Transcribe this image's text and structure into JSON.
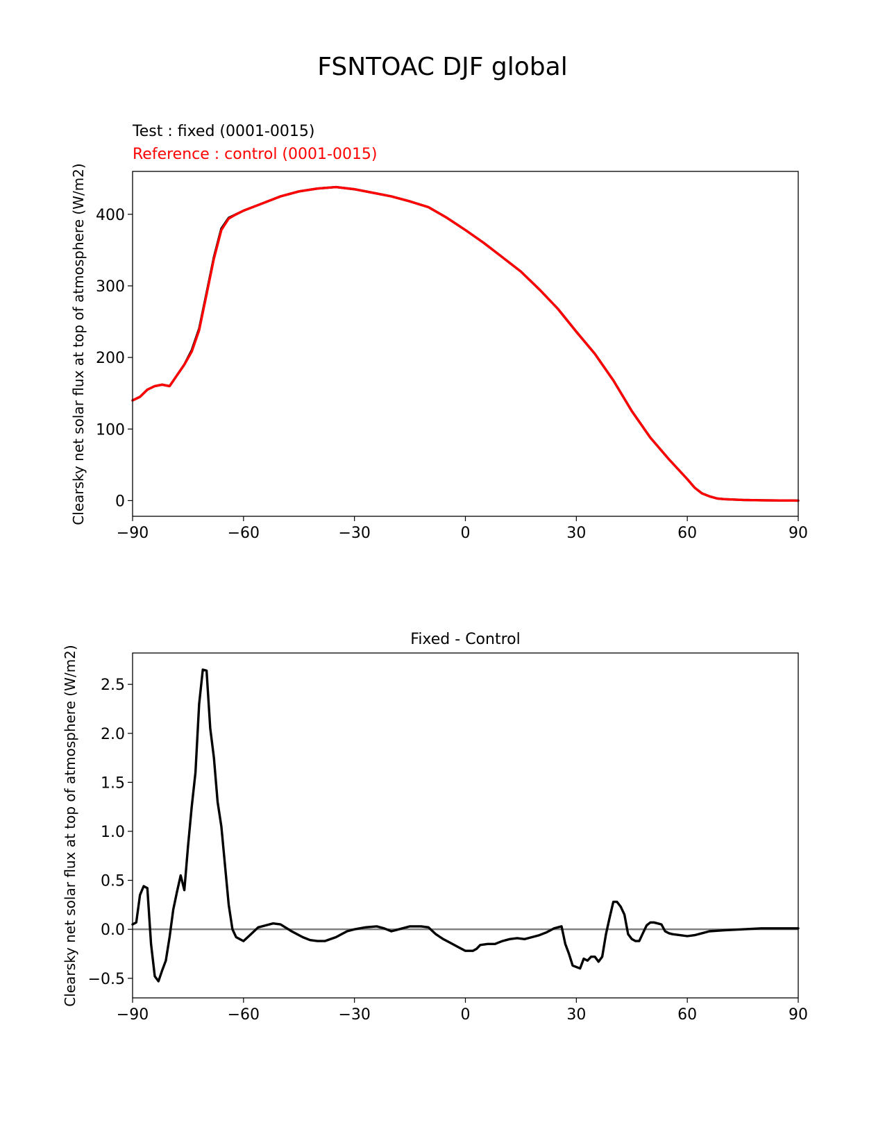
{
  "figure": {
    "suptitle": "FSNTOAC DJF global"
  },
  "chart_data": [
    {
      "type": "line",
      "title": "",
      "annotations": [
        {
          "text": "Test : fixed (0001-0015)",
          "color": "#000000"
        },
        {
          "text": "Reference : control (0001-0015)",
          "color": "#ff0000"
        }
      ],
      "xlabel": "",
      "ylabel": "Clearsky net solar flux at top of atmosphere (W/m2)",
      "xlim": [
        -90,
        90
      ],
      "ylim": [
        -21.9,
        459.9
      ],
      "xticks": [
        -90,
        -60,
        -30,
        0,
        30,
        60,
        90
      ],
      "xtick_labels": [
        "−90",
        "−60",
        "−30",
        "0",
        "30",
        "60",
        "90"
      ],
      "yticks": [
        0,
        100,
        200,
        300,
        400
      ],
      "ytick_labels": [
        "0",
        "100",
        "200",
        "300",
        "400"
      ],
      "grid": false,
      "series": [
        {
          "color": "#000000",
          "x": [
            -90,
            -88,
            -86,
            -84,
            -82,
            -80,
            -78,
            -76,
            -74,
            -72,
            -70,
            -68,
            -66,
            -64,
            -62,
            -60,
            -55,
            -50,
            -45,
            -40,
            -35,
            -30,
            -25,
            -20,
            -15,
            -10,
            -5,
            0,
            5,
            10,
            15,
            20,
            25,
            30,
            35,
            40,
            45,
            50,
            55,
            60,
            62,
            64,
            66,
            68,
            70,
            75,
            80,
            85,
            90
          ],
          "y": [
            140,
            145,
            155,
            160,
            162,
            160,
            175,
            190,
            210,
            240,
            290,
            340,
            380,
            395,
            400,
            405,
            415,
            425,
            432,
            436,
            438,
            435,
            430,
            425,
            418,
            410,
            395,
            378,
            360,
            340,
            320,
            295,
            268,
            236,
            205,
            168,
            125,
            88,
            58,
            30,
            18,
            10,
            6,
            3,
            2,
            1,
            0.5,
            0.2,
            0
          ]
        },
        {
          "color": "#ff0000",
          "x": [
            -90,
            -88,
            -86,
            -84,
            -82,
            -80,
            -78,
            -76,
            -74,
            -72,
            -70,
            -68,
            -66,
            -64,
            -62,
            -60,
            -55,
            -50,
            -45,
            -40,
            -35,
            -30,
            -25,
            -20,
            -15,
            -10,
            -5,
            0,
            5,
            10,
            15,
            20,
            25,
            30,
            35,
            40,
            45,
            50,
            55,
            60,
            62,
            64,
            66,
            68,
            70,
            75,
            80,
            85,
            90
          ],
          "y": [
            140,
            145,
            155,
            160,
            162,
            160,
            175,
            190,
            208,
            238,
            288,
            338,
            378,
            394,
            400,
            405,
            415,
            425,
            432,
            436,
            438,
            435,
            430,
            425,
            418,
            410,
            395,
            378,
            360,
            340,
            320,
            295,
            268,
            236,
            205,
            168,
            125,
            88,
            58,
            30,
            18,
            10,
            6,
            3,
            2,
            1,
            0.5,
            0.2,
            0
          ]
        }
      ]
    },
    {
      "type": "line",
      "title": "Fixed - Control",
      "xlabel": "",
      "ylabel": "Clearsky net solar flux at top of atmosphere (W/m2)",
      "xlim": [
        -90,
        90
      ],
      "ylim": [
        -0.7,
        2.82
      ],
      "xticks": [
        -90,
        -60,
        -30,
        0,
        30,
        60,
        90
      ],
      "xtick_labels": [
        "−90",
        "−60",
        "−30",
        "0",
        "30",
        "60",
        "90"
      ],
      "yticks": [
        -0.5,
        0.0,
        0.5,
        1.0,
        1.5,
        2.0,
        2.5
      ],
      "ytick_labels": [
        "−0.5",
        "0.0",
        "0.5",
        "1.0",
        "1.5",
        "2.0",
        "2.5"
      ],
      "grid": false,
      "reference_line": {
        "y": 0,
        "color": "#808080"
      },
      "series": [
        {
          "color": "#000000",
          "x": [
            -90,
            -89,
            -88,
            -87,
            -86,
            -85,
            -84,
            -83,
            -82,
            -81,
            -80,
            -79,
            -78,
            -77,
            -76,
            -75,
            -74,
            -73,
            -72,
            -71,
            -70,
            -69,
            -68,
            -67,
            -66,
            -65,
            -64,
            -63,
            -62,
            -60,
            -58,
            -56,
            -54,
            -52,
            -50,
            -47,
            -44,
            -42,
            -40,
            -38,
            -35,
            -32,
            -30,
            -27,
            -24,
            -22,
            -20,
            -18,
            -15,
            -12,
            -10,
            -8,
            -6,
            -4,
            -2,
            0,
            2,
            3,
            4,
            6,
            8,
            10,
            12,
            14,
            16,
            18,
            20,
            22,
            24,
            26,
            27,
            28,
            29,
            31,
            32,
            33,
            34,
            35,
            36,
            37,
            38,
            39,
            40,
            41,
            42,
            43,
            44,
            45,
            46,
            47,
            48,
            49,
            50,
            51,
            52,
            53,
            54,
            55,
            56,
            58,
            60,
            62,
            64,
            66,
            70,
            75,
            80,
            85,
            90
          ],
          "y": [
            0.05,
            0.07,
            0.35,
            0.44,
            0.42,
            -0.15,
            -0.48,
            -0.53,
            -0.42,
            -0.32,
            -0.08,
            0.2,
            0.38,
            0.55,
            0.4,
            0.85,
            1.25,
            1.6,
            2.3,
            2.65,
            2.64,
            2.05,
            1.75,
            1.3,
            1.05,
            0.65,
            0.25,
            0.0,
            -0.08,
            -0.12,
            -0.05,
            0.02,
            0.04,
            0.06,
            0.05,
            -0.02,
            -0.08,
            -0.11,
            -0.12,
            -0.12,
            -0.08,
            -0.02,
            0.0,
            0.02,
            0.03,
            0.01,
            -0.02,
            0.0,
            0.03,
            0.03,
            0.02,
            -0.05,
            -0.1,
            -0.14,
            -0.18,
            -0.22,
            -0.22,
            -0.2,
            -0.16,
            -0.15,
            -0.15,
            -0.12,
            -0.1,
            -0.09,
            -0.1,
            -0.08,
            -0.06,
            -0.03,
            0.01,
            0.03,
            -0.15,
            -0.25,
            -0.37,
            -0.4,
            -0.3,
            -0.32,
            -0.28,
            -0.28,
            -0.33,
            -0.28,
            -0.05,
            0.12,
            0.28,
            0.28,
            0.23,
            0.15,
            -0.05,
            -0.1,
            -0.12,
            -0.12,
            -0.04,
            0.04,
            0.07,
            0.07,
            0.06,
            0.05,
            -0.02,
            -0.04,
            -0.05,
            -0.06,
            -0.07,
            -0.06,
            -0.04,
            -0.02,
            -0.01,
            0.0,
            0.01,
            0.01,
            0.01
          ]
        }
      ]
    }
  ]
}
